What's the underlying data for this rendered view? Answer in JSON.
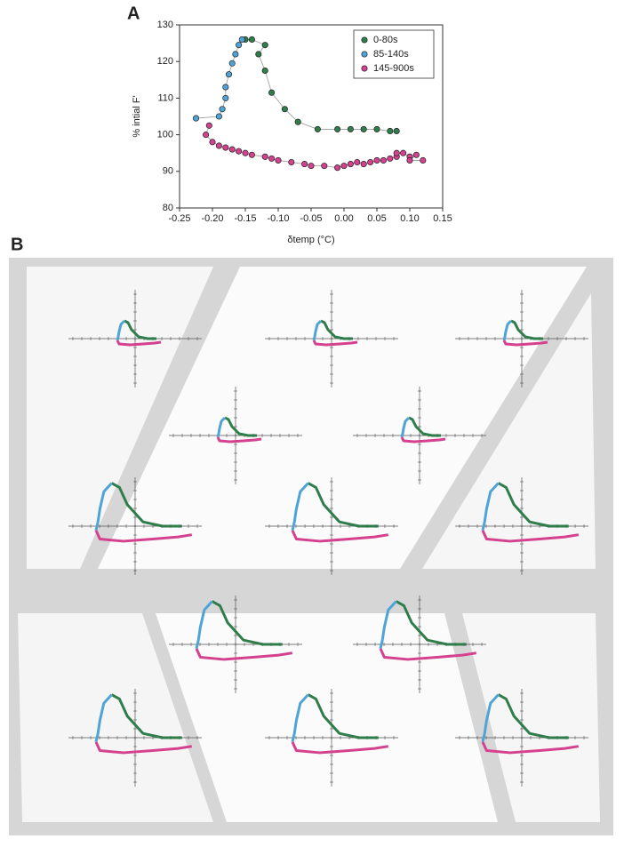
{
  "panels": {
    "a": "A",
    "b": "B"
  },
  "chart_data": {
    "type": "scatter",
    "x_label": "δtemp (°C)",
    "y_label": "% intial F'",
    "xlim": [
      -0.25,
      0.15
    ],
    "ylim": [
      80,
      130
    ],
    "xticks": [
      -0.25,
      {
        "value": -0.2,
        "label": "-0.20"
      },
      -0.15,
      {
        "value": -0.1,
        "label": "-0.10"
      },
      -0.05,
      {
        "value": 0,
        "label": "0.00"
      },
      0.05,
      {
        "value": 0.1,
        "label": "0.10"
      },
      0.15
    ],
    "yticks": [
      80,
      90,
      100,
      110,
      120,
      130
    ],
    "legend": "upper right",
    "series": [
      {
        "name": "0-80s",
        "color": "#2e7d4a",
        "x": [
          0.08,
          0.07,
          0.05,
          0.03,
          0.01,
          -0.01,
          -0.04,
          -0.07,
          -0.09,
          -0.11,
          -0.12,
          -0.13,
          -0.12,
          -0.14,
          -0.15
        ],
        "values": [
          101,
          101,
          101.5,
          101.5,
          101.5,
          101.5,
          101.5,
          103.5,
          107,
          111.5,
          117.5,
          122,
          124.5,
          126,
          126
        ]
      },
      {
        "name": "85-140s",
        "color": "#4fa3d6",
        "x": [
          -0.155,
          -0.16,
          -0.165,
          -0.17,
          -0.175,
          -0.18,
          -0.18,
          -0.185,
          -0.19,
          -0.225
        ],
        "values": [
          126,
          124.5,
          122,
          119.5,
          116.5,
          113,
          110,
          107,
          105,
          104.5
        ]
      },
      {
        "name": "145-900s",
        "color": "#d4418e",
        "x": [
          -0.205,
          -0.21,
          -0.2,
          -0.19,
          -0.18,
          -0.17,
          -0.16,
          -0.15,
          -0.14,
          -0.12,
          -0.11,
          -0.1,
          -0.08,
          -0.06,
          -0.05,
          -0.03,
          -0.01,
          0,
          0.01,
          0.02,
          0.03,
          0.04,
          0.05,
          0.06,
          0.07,
          0.08,
          0.08,
          0.09,
          0.1,
          0.11,
          0.1,
          0.12
        ],
        "values": [
          102.5,
          100,
          98,
          97,
          96.5,
          96,
          95.5,
          95,
          94.5,
          94,
          93.5,
          93,
          92.5,
          92,
          91.5,
          91.5,
          91,
          91.5,
          92,
          92.5,
          92,
          92.5,
          93,
          93,
          93.5,
          94,
          95,
          95,
          94,
          94.5,
          93,
          93
        ]
      }
    ]
  }
}
